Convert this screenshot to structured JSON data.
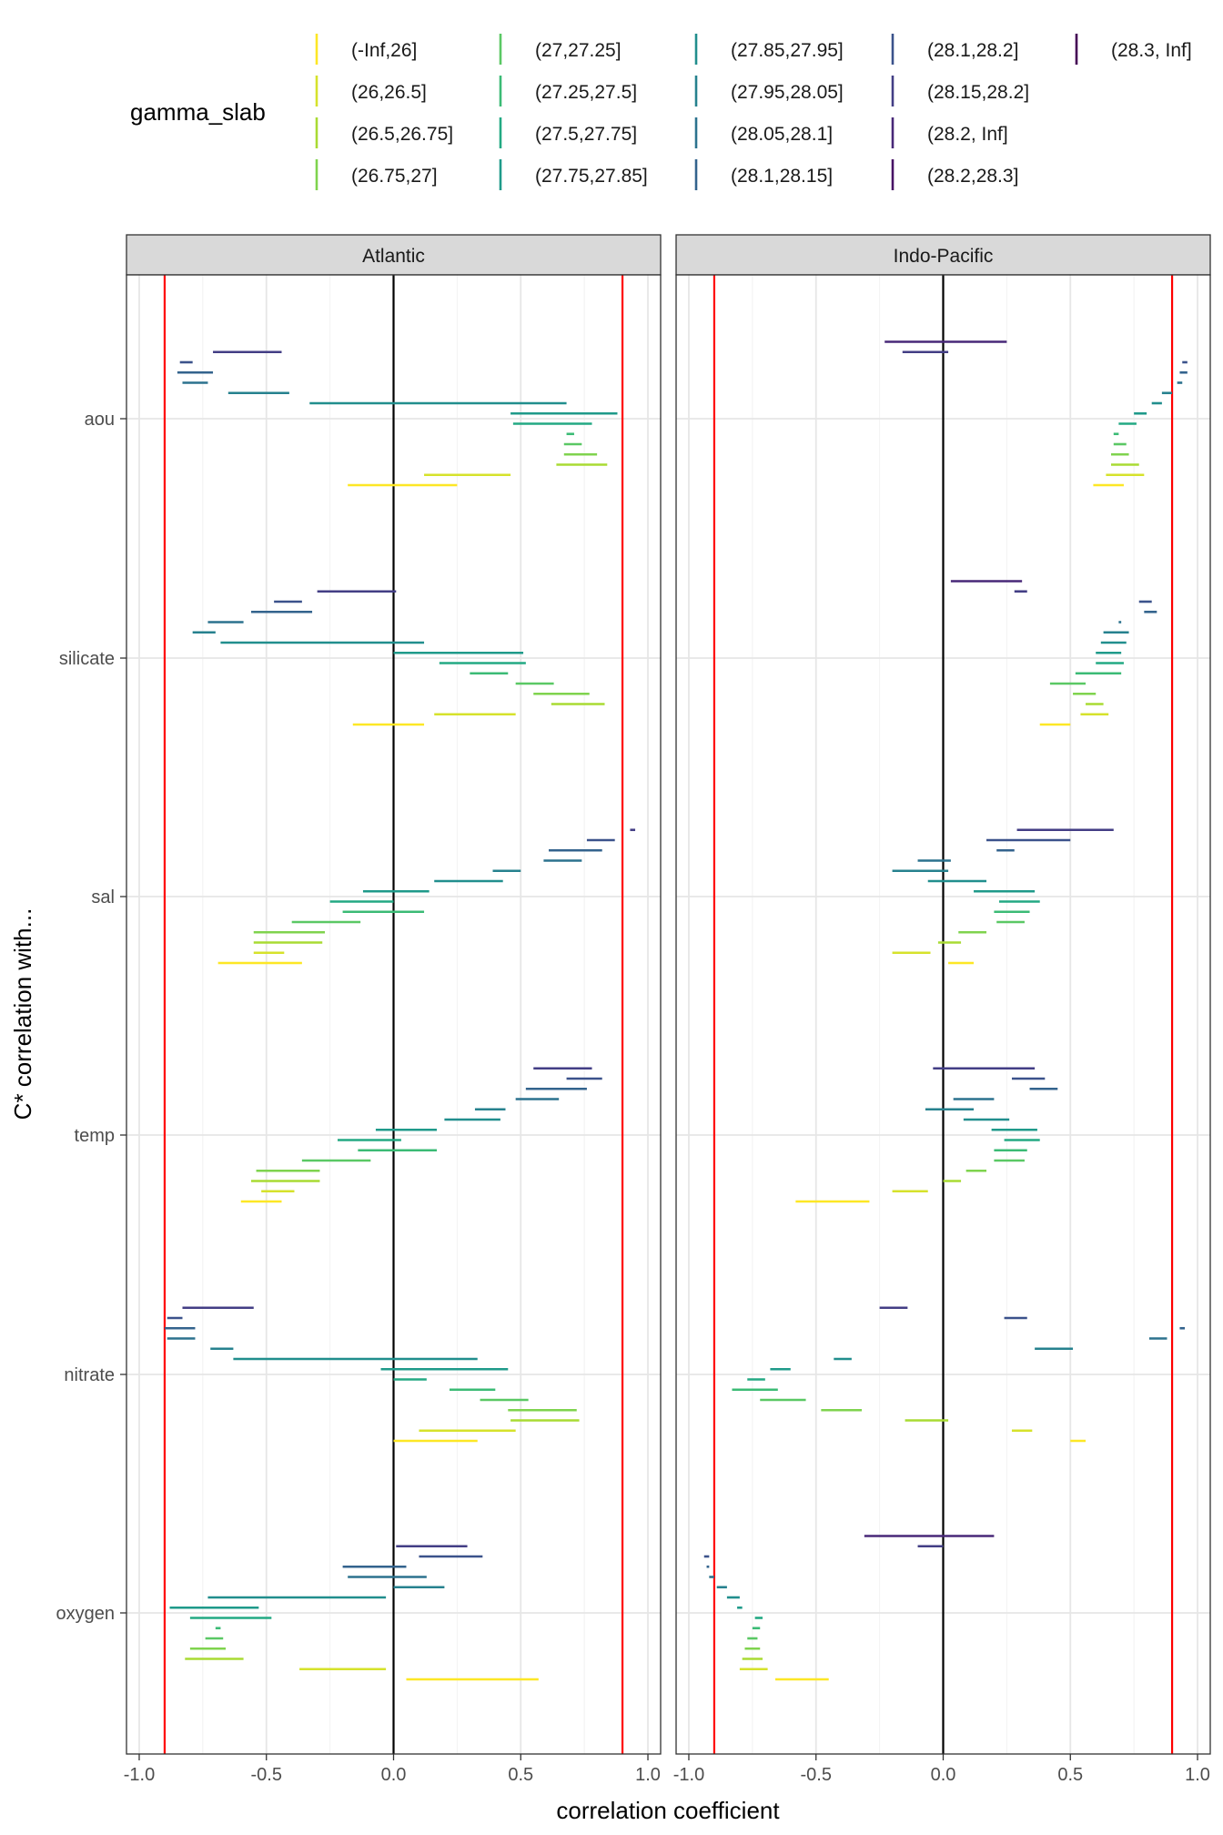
{
  "legend": {
    "title": "gamma_slab",
    "levels": [
      {
        "label": "(-Inf,26]",
        "color": "#FDE725"
      },
      {
        "label": "(26,26.5]",
        "color": "#D6E22B"
      },
      {
        "label": "(26.5,26.75]",
        "color": "#A9DB33"
      },
      {
        "label": "(26.75,27]",
        "color": "#7FD34E"
      },
      {
        "label": "(27,27.25]",
        "color": "#5AC864"
      },
      {
        "label": "(27.25,27.5]",
        "color": "#3BBB75"
      },
      {
        "label": "(27.5,27.75]",
        "color": "#23A983"
      },
      {
        "label": "(27.75,27.85]",
        "color": "#1F9A8A"
      },
      {
        "label": "(27.85,27.95]",
        "color": "#218E8D"
      },
      {
        "label": "(27.95,28.05]",
        "color": "#26818E"
      },
      {
        "label": "(28.05,28.1]",
        "color": "#2C728E"
      },
      {
        "label": "(28.1,28.15]",
        "color": "#33638D"
      },
      {
        "label": "(28.1,28.2]",
        "color": "#3B528B"
      },
      {
        "label": "(28.15,28.2]",
        "color": "#433E85"
      },
      {
        "label": "(28.2, Inf]",
        "color": "#482878"
      },
      {
        "label": "(28.2,28.3]",
        "color": "#471365"
      },
      {
        "label": "(28.3, Inf]",
        "color": "#440154"
      }
    ]
  },
  "chart_data": {
    "type": "range-segments",
    "xlabel": "correlation coefficient",
    "ylabel": "C* correlation with...",
    "xlim": [
      -1.05,
      1.05
    ],
    "x_ticks": [
      -1.0,
      -0.5,
      0.0,
      0.5,
      1.0
    ],
    "x_tick_labels": [
      "-1.0",
      "-0.5",
      "0.0",
      "0.5",
      "1.0"
    ],
    "reference_lines": {
      "red": [
        -0.9,
        0.9
      ],
      "black": [
        0.0
      ]
    },
    "grid": true,
    "legend_position": "top",
    "variables": [
      "aou",
      "silicate",
      "sal",
      "temp",
      "nitrate",
      "oxygen"
    ],
    "panels": [
      {
        "title": "Atlantic",
        "segments": {
          "aou": [
            [
              -0.18,
              0.25
            ],
            [
              0.12,
              0.46
            ],
            [
              0.64,
              0.84
            ],
            [
              0.67,
              0.8
            ],
            [
              0.67,
              0.74
            ],
            [
              0.68,
              0.71
            ],
            [
              0.47,
              0.78
            ],
            [
              0.46,
              0.88
            ],
            [
              -0.33,
              0.68
            ],
            [
              -0.65,
              -0.41
            ],
            [
              -0.83,
              -0.73
            ],
            [
              -0.85,
              -0.71
            ],
            [
              -0.84,
              -0.79
            ],
            [
              -0.71,
              -0.44
            ]
          ],
          "silicate": [
            [
              -0.16,
              0.12
            ],
            [
              0.16,
              0.48
            ],
            [
              0.62,
              0.83
            ],
            [
              0.55,
              0.77
            ],
            [
              0.48,
              0.63
            ],
            [
              0.3,
              0.45
            ],
            [
              0.18,
              0.52
            ],
            [
              0.0,
              0.51
            ],
            [
              -0.68,
              0.12
            ],
            [
              -0.79,
              -0.7
            ],
            [
              -0.73,
              -0.59
            ],
            [
              -0.56,
              -0.32
            ],
            [
              -0.47,
              -0.36
            ],
            [
              -0.3,
              0.01
            ]
          ],
          "sal": [
            [
              -0.69,
              -0.36
            ],
            [
              -0.55,
              -0.43
            ],
            [
              -0.55,
              -0.28
            ],
            [
              -0.55,
              -0.27
            ],
            [
              -0.4,
              -0.13
            ],
            [
              -0.2,
              0.12
            ],
            [
              -0.25,
              0.0
            ],
            [
              -0.12,
              0.14
            ],
            [
              0.16,
              0.43
            ],
            [
              0.39,
              0.5
            ],
            [
              0.59,
              0.74
            ],
            [
              0.61,
              0.82
            ],
            [
              0.76,
              0.87
            ],
            [
              0.93,
              0.95
            ]
          ],
          "temp": [
            [
              -0.6,
              -0.44
            ],
            [
              -0.52,
              -0.39
            ],
            [
              -0.56,
              -0.29
            ],
            [
              -0.54,
              -0.29
            ],
            [
              -0.36,
              -0.09
            ],
            [
              -0.14,
              0.17
            ],
            [
              -0.22,
              0.03
            ],
            [
              -0.07,
              0.17
            ],
            [
              0.2,
              0.42
            ],
            [
              0.32,
              0.44
            ],
            [
              0.48,
              0.65
            ],
            [
              0.52,
              0.76
            ],
            [
              0.68,
              0.82
            ],
            [
              0.55,
              0.78
            ]
          ],
          "nitrate": [
            [
              -0.0,
              0.33
            ],
            [
              0.1,
              0.48
            ],
            [
              0.46,
              0.73
            ],
            [
              0.45,
              0.72
            ],
            [
              0.34,
              0.53
            ],
            [
              0.22,
              0.4
            ],
            [
              0.0,
              0.13
            ],
            [
              -0.05,
              0.45
            ],
            [
              -0.63,
              0.33
            ],
            [
              -0.72,
              -0.63
            ],
            [
              -0.89,
              -0.78
            ],
            [
              -0.9,
              -0.78
            ],
            [
              -0.89,
              -0.83
            ],
            [
              -0.83,
              -0.55
            ]
          ],
          "oxygen": [
            [
              0.05,
              0.57
            ],
            [
              -0.37,
              -0.03
            ],
            [
              -0.82,
              -0.59
            ],
            [
              -0.8,
              -0.66
            ],
            [
              -0.74,
              -0.67
            ],
            [
              -0.7,
              -0.68
            ],
            [
              -0.8,
              -0.48
            ],
            [
              -0.88,
              -0.53
            ],
            [
              -0.73,
              -0.03
            ],
            [
              0.0,
              0.2
            ],
            [
              -0.18,
              0.13
            ],
            [
              -0.2,
              0.05
            ],
            [
              0.1,
              0.35
            ],
            [
              0.01,
              0.29
            ]
          ]
        }
      },
      {
        "title": "Indo-Pacific",
        "segments": {
          "aou": [
            [
              0.59,
              0.71
            ],
            [
              0.64,
              0.79
            ],
            [
              0.66,
              0.77
            ],
            [
              0.66,
              0.73
            ],
            [
              0.67,
              0.72
            ],
            [
              0.67,
              0.69
            ],
            [
              0.69,
              0.76
            ],
            [
              0.75,
              0.8
            ],
            [
              0.82,
              0.86
            ],
            [
              0.86,
              0.9
            ],
            [
              0.92,
              0.94
            ],
            [
              0.93,
              0.96
            ],
            [
              0.94,
              0.96
            ],
            [
              -0.16,
              0.02
            ],
            [
              -0.23,
              0.25
            ]
          ],
          "silicate": [
            [
              0.38,
              0.5
            ],
            [
              0.54,
              0.65
            ],
            [
              0.56,
              0.63
            ],
            [
              0.51,
              0.6
            ],
            [
              0.42,
              0.56
            ],
            [
              0.52,
              0.7
            ],
            [
              0.6,
              0.71
            ],
            [
              0.6,
              0.7
            ],
            [
              0.62,
              0.72
            ],
            [
              0.63,
              0.73
            ],
            [
              0.69,
              0.7
            ],
            [
              0.79,
              0.84
            ],
            [
              0.77,
              0.82
            ],
            [
              0.28,
              0.33
            ],
            [
              0.03,
              0.31
            ]
          ],
          "sal": [
            [
              0.02,
              0.12
            ],
            [
              -0.2,
              -0.05
            ],
            [
              -0.02,
              0.07
            ],
            [
              0.06,
              0.17
            ],
            [
              0.21,
              0.32
            ],
            [
              0.2,
              0.34
            ],
            [
              0.22,
              0.38
            ],
            [
              0.12,
              0.36
            ],
            [
              -0.06,
              0.17
            ],
            [
              -0.2,
              0.02
            ],
            [
              -0.1,
              0.03
            ],
            [
              0.21,
              0.28
            ],
            [
              0.17,
              0.5
            ],
            [
              0.29,
              0.67
            ]
          ],
          "temp": [
            [
              -0.58,
              -0.29
            ],
            [
              -0.2,
              -0.06
            ],
            [
              0.0,
              0.07
            ],
            [
              0.09,
              0.17
            ],
            [
              0.2,
              0.32
            ],
            [
              0.2,
              0.33
            ],
            [
              0.24,
              0.38
            ],
            [
              0.19,
              0.37
            ],
            [
              0.08,
              0.26
            ],
            [
              -0.07,
              0.12
            ],
            [
              0.04,
              0.2
            ],
            [
              0.34,
              0.45
            ],
            [
              0.27,
              0.4
            ],
            [
              -0.04,
              0.36
            ]
          ],
          "nitrate": [
            [
              0.5,
              0.56
            ],
            [
              0.27,
              0.35
            ],
            [
              -0.15,
              0.02
            ],
            [
              -0.48,
              -0.32
            ],
            [
              -0.72,
              -0.54
            ],
            [
              -0.83,
              -0.65
            ],
            [
              -0.77,
              -0.7
            ],
            [
              -0.68,
              -0.6
            ],
            [
              -0.43,
              -0.36
            ],
            [
              0.36,
              0.51
            ],
            [
              0.81,
              0.88
            ],
            [
              0.93,
              0.95
            ],
            [
              0.24,
              0.33
            ],
            [
              -0.25,
              -0.14
            ]
          ],
          "oxygen": [
            [
              -0.66,
              -0.45
            ],
            [
              -0.8,
              -0.69
            ],
            [
              -0.79,
              -0.71
            ],
            [
              -0.78,
              -0.72
            ],
            [
              -0.77,
              -0.73
            ],
            [
              -0.75,
              -0.72
            ],
            [
              -0.74,
              -0.71
            ],
            [
              -0.81,
              -0.79
            ],
            [
              -0.85,
              -0.8
            ],
            [
              -0.89,
              -0.85
            ],
            [
              -0.92,
              -0.9
            ],
            [
              -0.93,
              -0.92
            ],
            [
              -0.94,
              -0.92
            ],
            [
              -0.1,
              0.0
            ],
            [
              -0.31,
              0.2
            ]
          ]
        }
      }
    ]
  }
}
